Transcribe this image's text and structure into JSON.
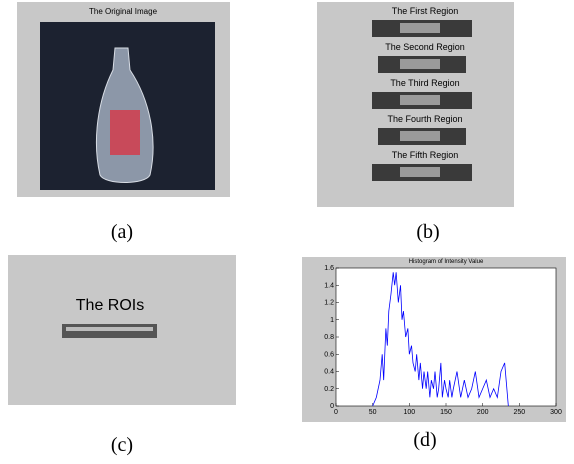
{
  "panels": {
    "a": {
      "title": "The Original Image",
      "label": "(a)"
    },
    "b": {
      "regions": [
        "The First Region",
        "The Second Region",
        "The Third Region",
        "The Fourth Region",
        "The Fifth Region"
      ],
      "label": "(b)"
    },
    "c": {
      "title": "The ROIs",
      "label": "(c)"
    },
    "d": {
      "label": "(d)"
    }
  },
  "chart_data": {
    "type": "line",
    "title": "Histogram of Intensity Value",
    "color": "#0000ff",
    "x": [
      50,
      55,
      60,
      63,
      65,
      68,
      70,
      72,
      75,
      78,
      80,
      82,
      85,
      88,
      90,
      92,
      95,
      98,
      100,
      103,
      105,
      108,
      110,
      113,
      115,
      118,
      120,
      123,
      125,
      128,
      130,
      133,
      135,
      138,
      140,
      143,
      145,
      148,
      150,
      153,
      155,
      158,
      160,
      165,
      170,
      175,
      180,
      185,
      190,
      195,
      200,
      205,
      210,
      215,
      220,
      225,
      230,
      233,
      235
    ],
    "values": [
      0,
      0.1,
      0.3,
      0.6,
      0.3,
      0.9,
      0.7,
      1.1,
      1.3,
      1.55,
      1.4,
      1.55,
      1.2,
      1.4,
      1.0,
      1.1,
      0.8,
      0.9,
      0.6,
      0.7,
      0.5,
      0.4,
      0.6,
      0.3,
      0.5,
      0.2,
      0.4,
      0.2,
      0.4,
      0.1,
      0.3,
      0.2,
      0.4,
      0.1,
      0.2,
      0.5,
      0.1,
      0.3,
      0.2,
      0.1,
      0.3,
      0.1,
      0.2,
      0.4,
      0.1,
      0.3,
      0.1,
      0.2,
      0.4,
      0.1,
      0.2,
      0.3,
      0.1,
      0.2,
      0.1,
      0.4,
      0.5,
      0.2,
      0
    ],
    "xlim": [
      0,
      300
    ],
    "xticks": [
      0,
      50,
      100,
      150,
      200,
      250,
      300
    ],
    "ylim": [
      0,
      1.6
    ],
    "yticks": [
      0,
      0.2,
      0.4,
      0.6,
      0.8,
      1,
      1.2,
      1.4,
      1.6
    ]
  }
}
